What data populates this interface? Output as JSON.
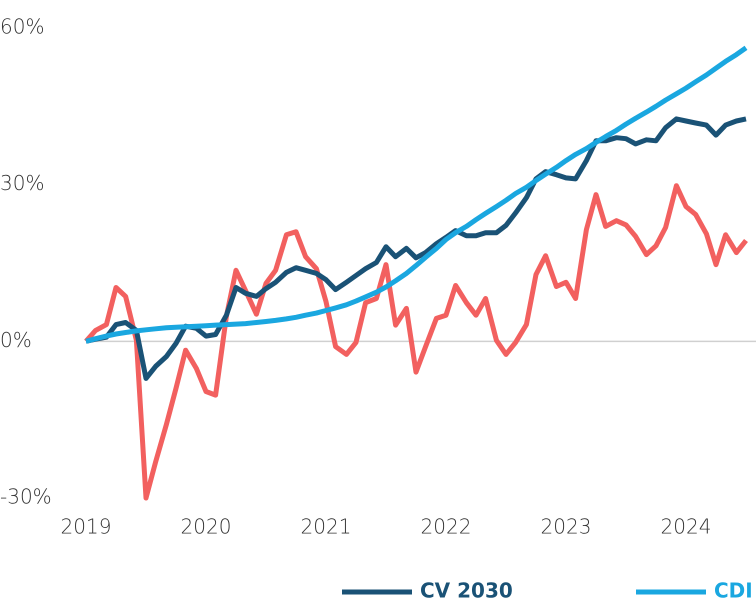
{
  "chart_data": {
    "type": "line",
    "x": [
      2019,
      2019.08,
      2019.17,
      2019.25,
      2019.33,
      2019.42,
      2019.5,
      2019.58,
      2019.67,
      2019.75,
      2019.83,
      2019.92,
      2020,
      2020.08,
      2020.17,
      2020.25,
      2020.33,
      2020.42,
      2020.5,
      2020.58,
      2020.67,
      2020.75,
      2020.83,
      2020.92,
      2021,
      2021.08,
      2021.17,
      2021.25,
      2021.33,
      2021.42,
      2021.5,
      2021.58,
      2021.67,
      2021.75,
      2021.83,
      2021.92,
      2022,
      2022.08,
      2022.17,
      2022.25,
      2022.33,
      2022.42,
      2022.5,
      2022.58,
      2022.67,
      2022.75,
      2022.83,
      2022.92,
      2023,
      2023.08,
      2023.17,
      2023.25,
      2023.33,
      2023.42,
      2023.5,
      2023.58,
      2023.67,
      2023.75,
      2023.83,
      2023.92,
      2024,
      2024.08,
      2024.17,
      2024.25,
      2024.33,
      2024.42,
      2024.5
    ],
    "series": [
      {
        "color": "#f2605f",
        "values": [
          0,
          2.1,
          3.2,
          10.3,
          8.6,
          0.2,
          -30,
          -23.1,
          -15.9,
          -9.0,
          -1.7,
          -5.2,
          -9.6,
          -10.3,
          4.8,
          13.6,
          9.7,
          5.2,
          11.1,
          13.6,
          20.4,
          21.0,
          16.2,
          13.9,
          7.6,
          -1.0,
          -2.5,
          -0.2,
          7.4,
          8.2,
          14.7,
          3.1,
          6.3,
          -5.9,
          -1.0,
          4.4,
          5.0,
          10.7,
          7.4,
          5.0,
          8.2,
          0.2,
          -2.5,
          -0.2,
          3.2,
          12.8,
          16.4,
          10.5,
          11.3,
          8.2,
          21.4,
          28.1,
          22.0,
          23.1,
          22.3,
          20.1,
          16.6,
          18.3,
          21.8,
          29.8,
          25.8,
          24.3,
          20.6,
          14.7,
          20.4,
          17.0,
          19.3
        ]
      },
      {
        "name": "CV 2030",
        "color": "#1a5276",
        "values": [
          0,
          0.4,
          0.8,
          3.2,
          3.6,
          2.1,
          -7.1,
          -4.8,
          -2.9,
          -0.4,
          2.9,
          2.5,
          1.0,
          1.3,
          5.0,
          10.3,
          9.2,
          8.6,
          10.1,
          11.3,
          13.2,
          14.1,
          13.6,
          13.0,
          11.8,
          9.9,
          11.3,
          12.6,
          13.9,
          15.1,
          18.1,
          16.2,
          17.8,
          16.0,
          17.0,
          18.7,
          19.9,
          21.2,
          20.2,
          20.2,
          20.8,
          20.8,
          22.2,
          24.6,
          27.5,
          31.1,
          32.5,
          31.9,
          31.3,
          31.1,
          34.6,
          38.4,
          38.4,
          39.0,
          38.8,
          37.8,
          38.6,
          38.4,
          40.9,
          42.6,
          42.2,
          41.8,
          41.4,
          39.5,
          41.4,
          42.2,
          42.6
        ]
      },
      {
        "name": "CDI",
        "color": "#1aa7e0",
        "values": [
          0,
          0.5,
          1.0,
          1.4,
          1.7,
          2.0,
          2.2,
          2.4,
          2.6,
          2.7,
          2.8,
          2.9,
          3.0,
          3.1,
          3.2,
          3.3,
          3.4,
          3.6,
          3.8,
          4.0,
          4.3,
          4.6,
          5.0,
          5.4,
          5.9,
          6.4,
          7.0,
          7.7,
          8.5,
          9.4,
          10.4,
          11.6,
          13.0,
          14.5,
          16.1,
          17.8,
          19.5,
          20.8,
          22.0,
          23.3,
          24.5,
          25.8,
          27.0,
          28.3,
          29.5,
          30.8,
          32.0,
          33.3,
          34.6,
          35.8,
          36.9,
          38.1,
          39.2,
          40.4,
          41.6,
          42.7,
          43.9,
          45.0,
          46.2,
          47.4,
          48.5,
          49.7,
          51.0,
          52.3,
          53.6,
          54.9,
          56.2
        ]
      }
    ],
    "xlim": [
      2019,
      2024.5
    ],
    "xticks": [
      2019,
      2020,
      2021,
      2022,
      2023,
      2024
    ],
    "ylim": [
      -30,
      60
    ],
    "yticks": [
      {
        "value": -30,
        "label": "-30%"
      },
      {
        "value": 0,
        "label": "0%"
      },
      {
        "value": 30,
        "label": "30%"
      },
      {
        "value": 60,
        "label": "60%"
      }
    ],
    "zero_line": true,
    "legend": "bottom"
  }
}
